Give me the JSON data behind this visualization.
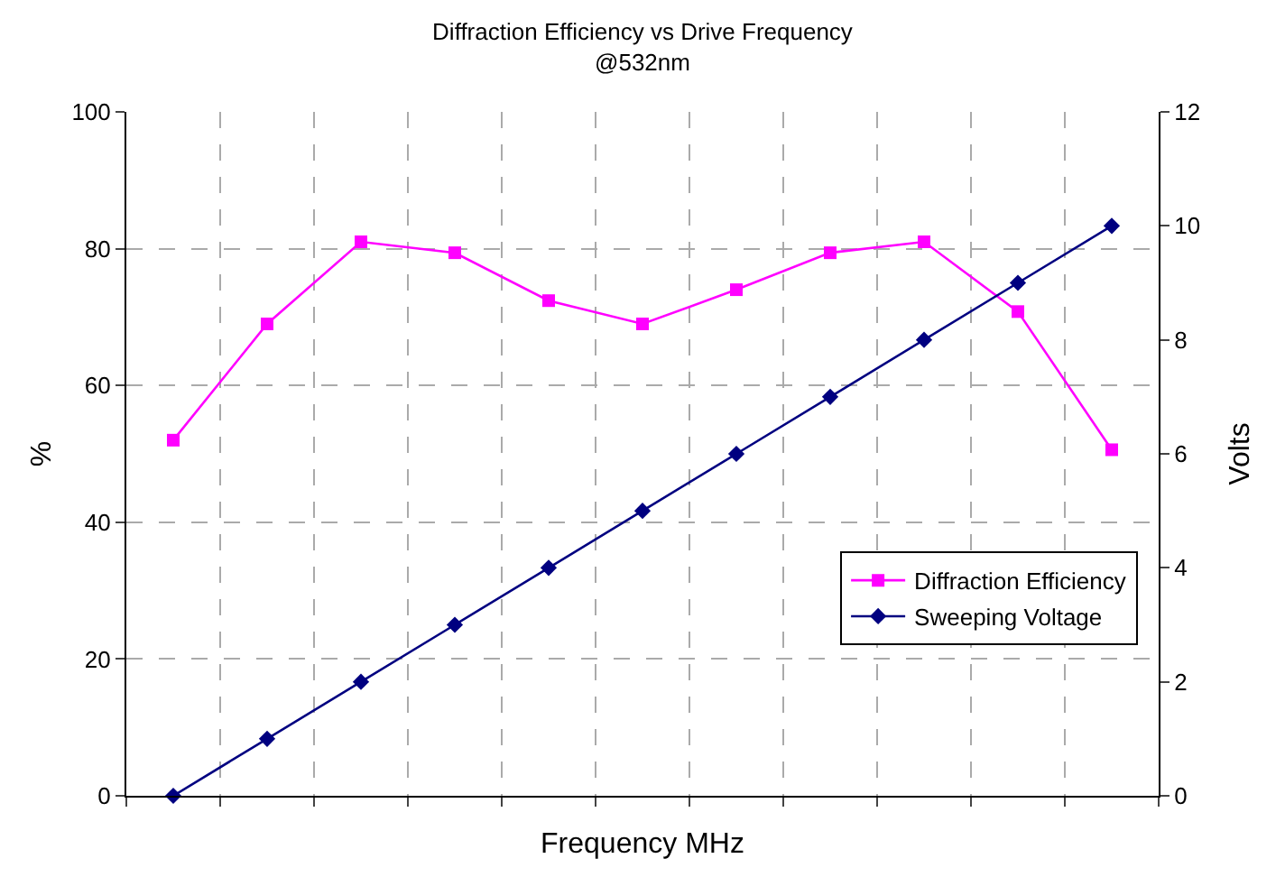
{
  "chart_data": {
    "type": "line",
    "title": "Diffraction Efficiency vs Drive Frequency",
    "subtitle": "@532nm",
    "xlabel": "Frequency MHz",
    "ylabel": "%",
    "y2label": "Volts",
    "categories": [
      null,
      null,
      null,
      null,
      null,
      null,
      null,
      null,
      null,
      null,
      null
    ],
    "series": [
      {
        "name": "Diffraction Efficiency",
        "color": "#ff00ff",
        "marker": "square",
        "values": [
          52,
          69,
          81,
          79.4,
          72.4,
          69,
          74,
          79.4,
          81,
          70.8,
          50.6
        ]
      },
      {
        "name": "Sweeping Voltage",
        "color": "#000080",
        "marker": "diamond",
        "axis": "y2",
        "values": [
          0,
          1,
          2,
          3,
          4,
          5,
          6,
          7,
          8,
          9,
          10
        ]
      }
    ],
    "ylim": [
      0,
      100
    ],
    "yticks": [
      0,
      20,
      40,
      60,
      80,
      100
    ],
    "y2lim": [
      0,
      12
    ],
    "y2ticks": [
      0,
      2,
      4,
      6,
      8,
      10,
      12
    ],
    "grid": true,
    "line_style": "solid",
    "legend": "bottom right"
  }
}
